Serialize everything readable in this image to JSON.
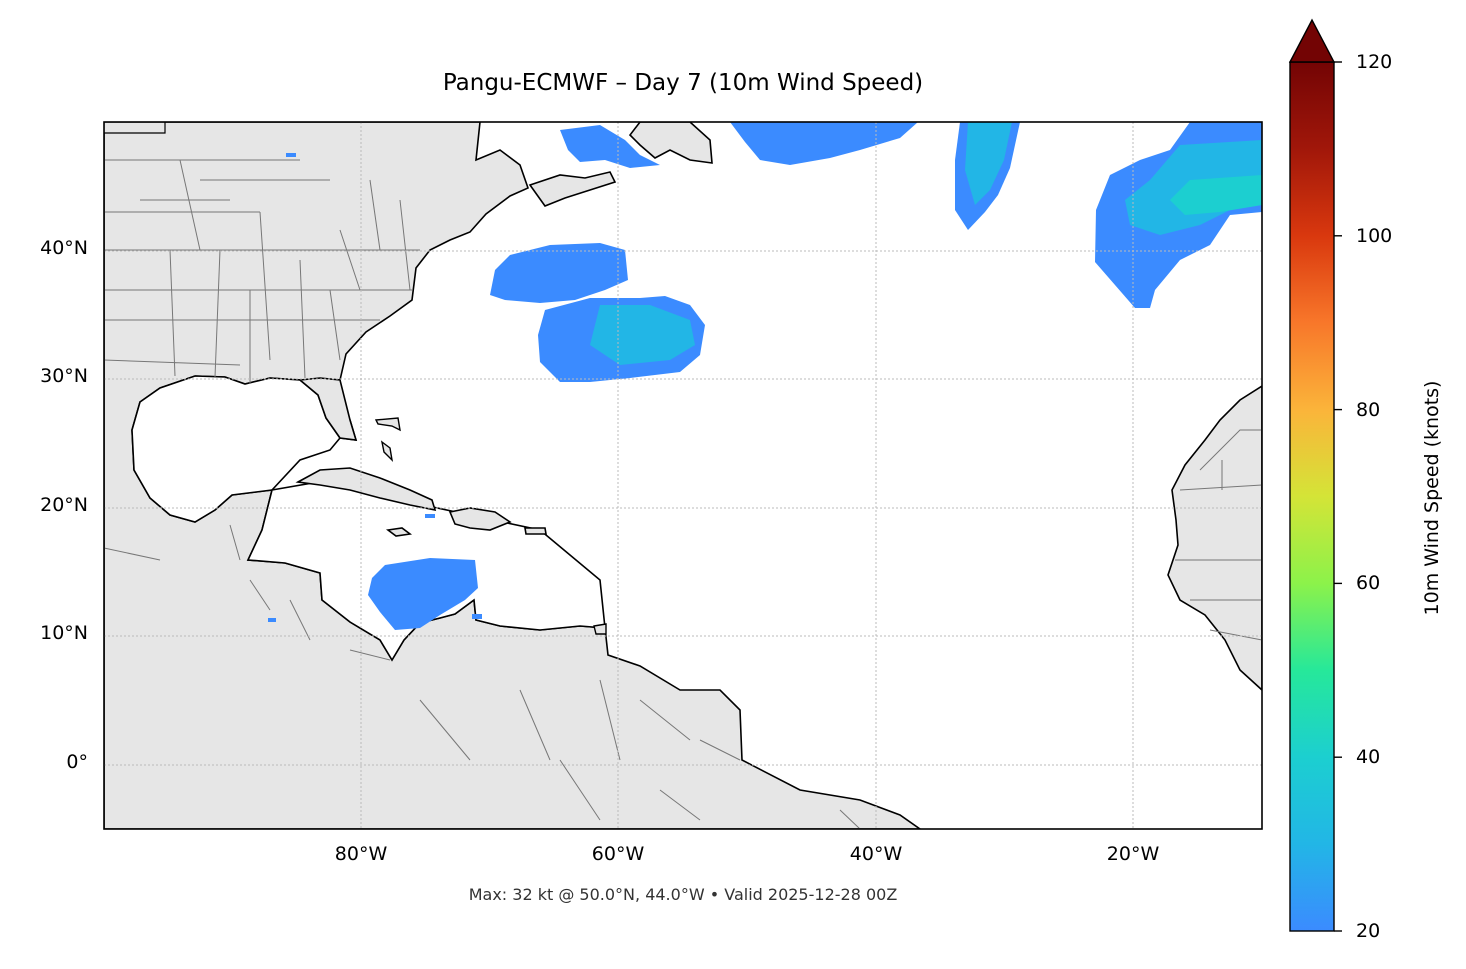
{
  "title": "Pangu-ECMWF – Day 7 (10m Wind Speed)",
  "footer": "Max: 32 kt @ 50.0°N, 44.0°W • Valid 2025-12-28 00Z",
  "colorbar": {
    "label": "10m Wind Speed (knots)",
    "min": 20,
    "max": 120,
    "ticks": [
      "20",
      "40",
      "60",
      "80",
      "100",
      "120"
    ],
    "extend": "max",
    "colors": [
      "#3b8bff",
      "#22b6e6",
      "#1ccfd0",
      "#26e89a",
      "#8cf24a",
      "#d4e437",
      "#fbb43a",
      "#f8772a",
      "#d9380e",
      "#a1170a",
      "#730404"
    ]
  },
  "map": {
    "lon_range": [
      -100,
      -10
    ],
    "lat_range": [
      -5,
      50
    ],
    "land_color": "#e6e6e6",
    "ocean_color": "#ffffff",
    "wind_colors": {
      "low": "#3b8bff",
      "mid": "#22b6e6",
      "teal": "#1ccfd0"
    },
    "lat_ticks": [
      "40°N",
      "30°N",
      "20°N",
      "10°N",
      "0°"
    ],
    "lon_ticks": [
      "80°W",
      "60°W",
      "40°W",
      "20°W"
    ]
  }
}
